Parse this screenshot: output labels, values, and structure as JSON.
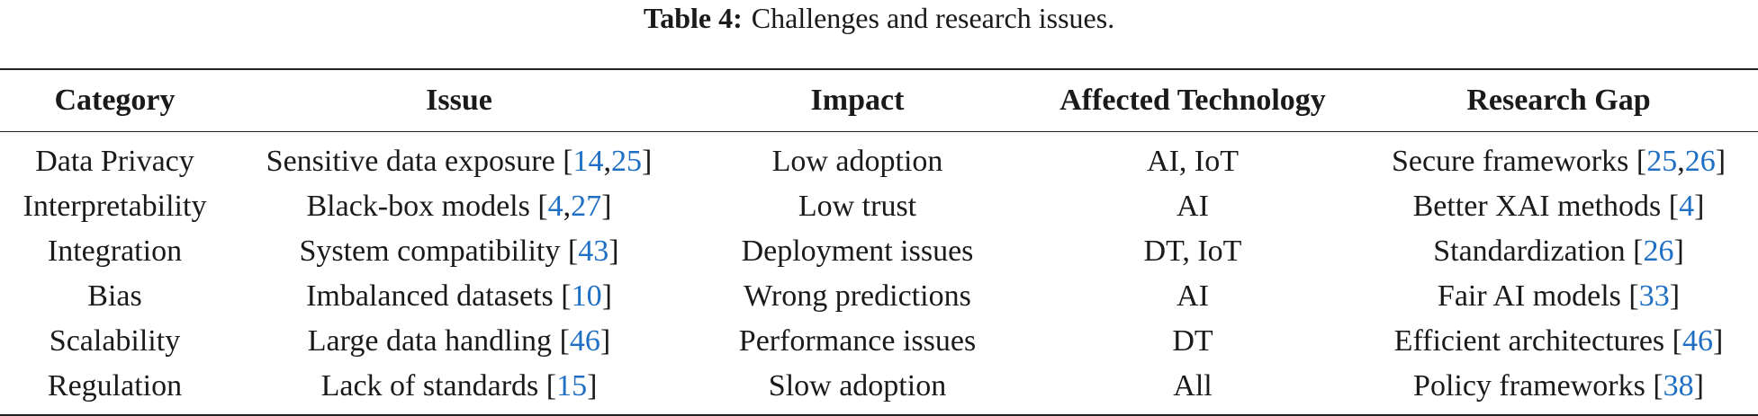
{
  "caption": {
    "label": "Table 4:",
    "text": "Challenges and research issues."
  },
  "table": {
    "headers": [
      "Category",
      "Issue",
      "Impact",
      "Affected Technology",
      "Research Gap"
    ],
    "rows": [
      {
        "category": "Data Privacy",
        "issue": "Sensitive data exposure",
        "issue_refs": [
          "14",
          "25"
        ],
        "impact": "Low adoption",
        "technology": "AI, IoT",
        "gap": "Secure frameworks",
        "gap_refs": [
          "25",
          "26"
        ]
      },
      {
        "category": "Interpretability",
        "issue": "Black-box models",
        "issue_refs": [
          "4",
          "27"
        ],
        "impact": "Low trust",
        "technology": "AI",
        "gap": "Better XAI methods",
        "gap_refs": [
          "4"
        ]
      },
      {
        "category": "Integration",
        "issue": "System compatibility",
        "issue_refs": [
          "43"
        ],
        "impact": "Deployment issues",
        "technology": "DT, IoT",
        "gap": "Standardization",
        "gap_refs": [
          "26"
        ]
      },
      {
        "category": "Bias",
        "issue": "Imbalanced datasets",
        "issue_refs": [
          "10"
        ],
        "impact": "Wrong predictions",
        "technology": "AI",
        "gap": "Fair AI models",
        "gap_refs": [
          "33"
        ]
      },
      {
        "category": "Scalability",
        "issue": "Large data handling",
        "issue_refs": [
          "46"
        ],
        "impact": "Performance issues",
        "technology": "DT",
        "gap": "Efficient architectures",
        "gap_refs": [
          "46"
        ]
      },
      {
        "category": "Regulation",
        "issue": "Lack of standards",
        "issue_refs": [
          "15"
        ],
        "impact": "Slow adoption",
        "technology": "All",
        "gap": "Policy frameworks",
        "gap_refs": [
          "38"
        ]
      }
    ]
  },
  "colors": {
    "text": "#1a1a1a",
    "citation_link": "#1f6fc4",
    "rule": "#222222"
  }
}
